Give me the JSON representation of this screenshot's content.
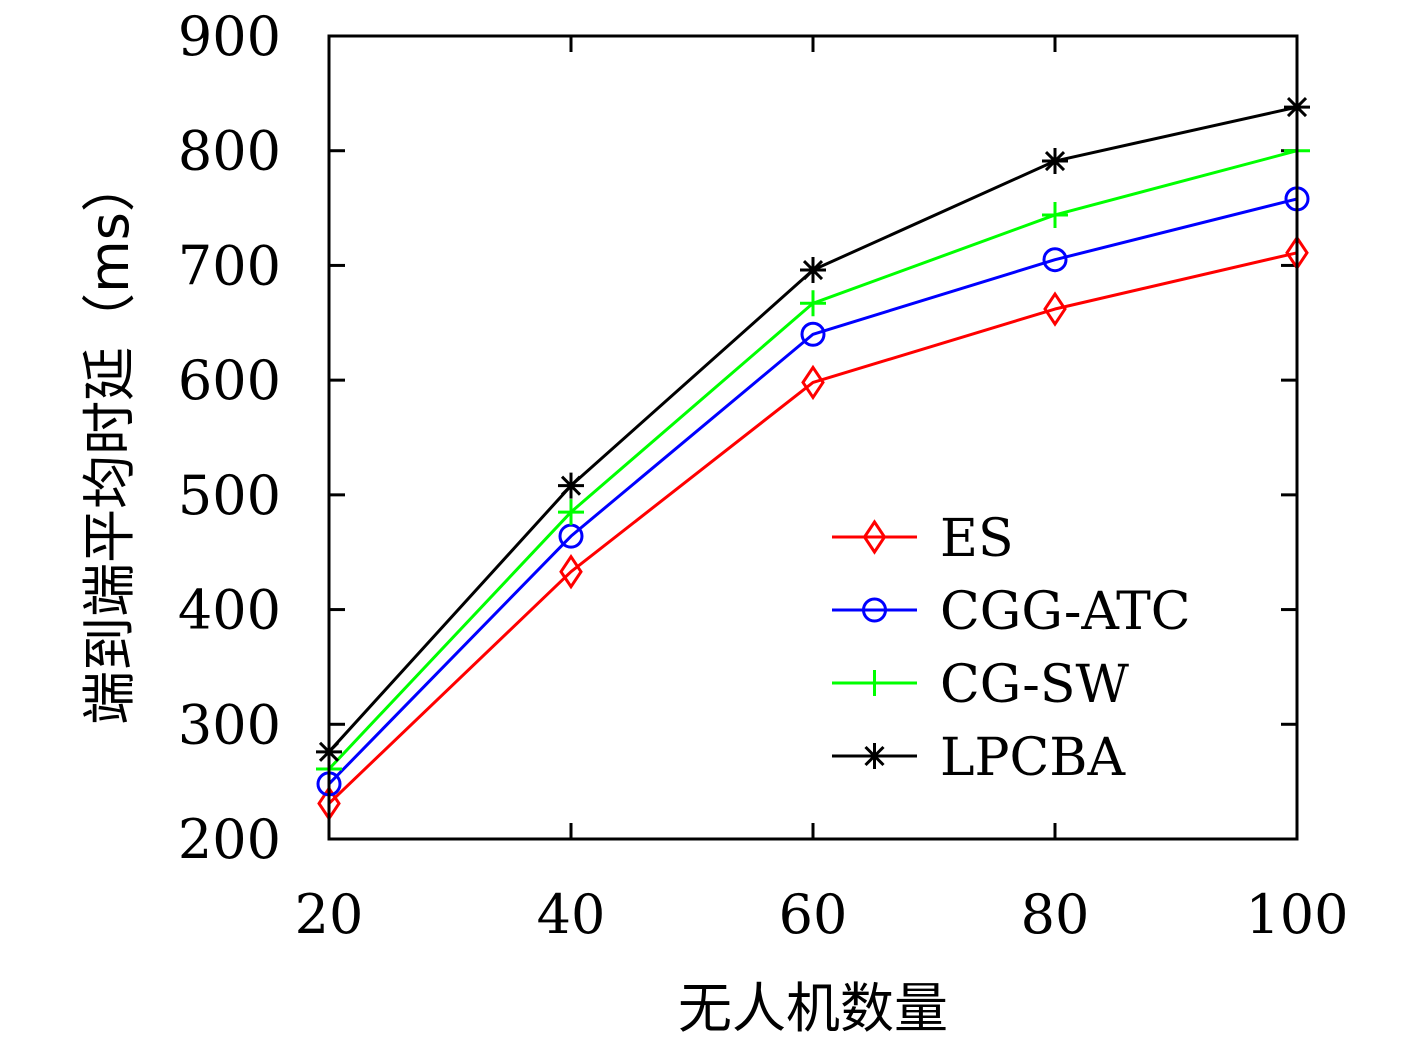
{
  "chart_data": {
    "type": "line",
    "title": "",
    "xlabel": "无人机数量",
    "ylabel": "端到端平均时延（ms）",
    "x": [
      20,
      40,
      60,
      80,
      100
    ],
    "xticks": [
      "20",
      "40",
      "60",
      "80",
      "100"
    ],
    "yticks": [
      "200",
      "300",
      "400",
      "500",
      "600",
      "700",
      "800",
      "900"
    ],
    "xlim": [
      20,
      100
    ],
    "ylim": [
      200,
      900
    ],
    "grid": false,
    "legend_position": "bottom-right",
    "series": [
      {
        "name": "ES",
        "color": "#ff0000",
        "marker": "diamond",
        "values": [
          231,
          433,
          598,
          662,
          711
        ]
      },
      {
        "name": "CGG-ATC",
        "color": "#0000ff",
        "marker": "circle",
        "values": [
          248,
          464,
          640,
          705,
          758
        ]
      },
      {
        "name": "CG-SW",
        "color": "#00ff00",
        "marker": "plus",
        "values": [
          261,
          485,
          667,
          744,
          800
        ]
      },
      {
        "name": "LPCBA",
        "color": "#000000",
        "marker": "asterisk",
        "values": [
          276,
          508,
          696,
          791,
          838
        ]
      }
    ]
  }
}
